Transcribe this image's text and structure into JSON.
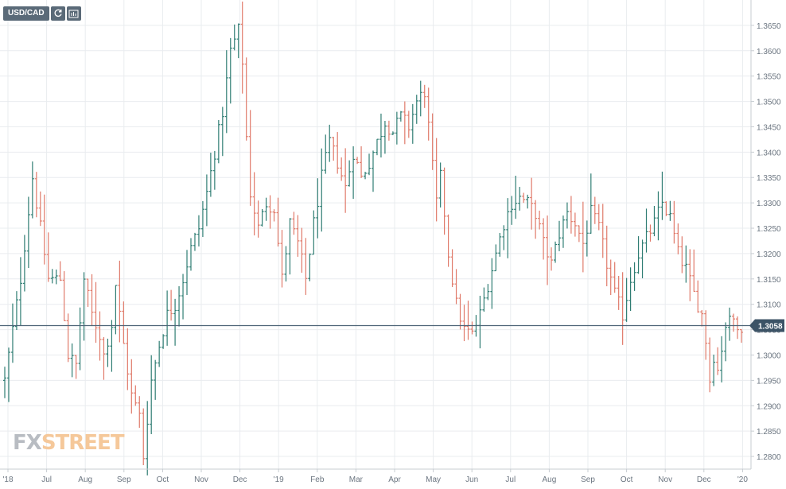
{
  "toolbar": {
    "symbol": "USD/CAD",
    "buttons": [
      {
        "name": "refresh-icon"
      },
      {
        "name": "chart-settings-icon"
      }
    ]
  },
  "logo": {
    "text_part1": "FX",
    "text_part2": "STREET"
  },
  "colors": {
    "up": "#2f7d73",
    "down": "#e07a6a",
    "current_line": "#4d6477",
    "price_badge": "#3c5366",
    "grid": "#e9ecef"
  },
  "chart_data": {
    "type": "ohlc",
    "title": "USD/CAD",
    "current_price": 1.3058,
    "current_price_label": "1.3058",
    "ylim": [
      1.2775,
      1.37
    ],
    "y_ticks": [
      "1.2800",
      "1.2850",
      "1.2900",
      "1.2950",
      "1.3000",
      "1.3050",
      "1.3100",
      "1.3150",
      "1.3200",
      "1.3250",
      "1.3300",
      "1.3350",
      "1.3400",
      "1.3450",
      "1.3500",
      "1.3550",
      "1.3600",
      "1.3650"
    ],
    "x_ticks": [
      "'18",
      "Jul",
      "Aug",
      "Sep",
      "Oct",
      "Nov",
      "Dec",
      "'19",
      "Feb",
      "Mar",
      "Apr",
      "May",
      "Jun",
      "Jul",
      "Aug",
      "Sep",
      "Oct",
      "Nov",
      "Dec",
      "'20"
    ],
    "grid": true,
    "price_path": [
      [
        0,
        1.295
      ],
      [
        4,
        1.315
      ],
      [
        7,
        1.335
      ],
      [
        9,
        1.325
      ],
      [
        11,
        1.315
      ],
      [
        14,
        1.315
      ],
      [
        16,
        1.3
      ],
      [
        18,
        1.298
      ],
      [
        20,
        1.315
      ],
      [
        22,
        1.308
      ],
      [
        24,
        1.304
      ],
      [
        25,
        1.3
      ],
      [
        27,
        1.306
      ],
      [
        28,
        1.314
      ],
      [
        30,
        1.302
      ],
      [
        32,
        1.292
      ],
      [
        34,
        1.288
      ],
      [
        35,
        1.28
      ],
      [
        37,
        1.295
      ],
      [
        39,
        1.302
      ],
      [
        41,
        1.308
      ],
      [
        43,
        1.31
      ],
      [
        45,
        1.315
      ],
      [
        47,
        1.321
      ],
      [
        49,
        1.325
      ],
      [
        51,
        1.332
      ],
      [
        53,
        1.34
      ],
      [
        55,
        1.348
      ],
      [
        57,
        1.36
      ],
      [
        59,
        1.364
      ],
      [
        60,
        1.358
      ],
      [
        61,
        1.343
      ],
      [
        62,
        1.332
      ],
      [
        64,
        1.325
      ],
      [
        66,
        1.33
      ],
      [
        68,
        1.329
      ],
      [
        70,
        1.315
      ],
      [
        72,
        1.326
      ],
      [
        74,
        1.322
      ],
      [
        76,
        1.315
      ],
      [
        78,
        1.326
      ],
      [
        80,
        1.335
      ],
      [
        82,
        1.342
      ],
      [
        84,
        1.338
      ],
      [
        86,
        1.333
      ],
      [
        88,
        1.34
      ],
      [
        90,
        1.335
      ],
      [
        92,
        1.338
      ],
      [
        94,
        1.342
      ],
      [
        96,
        1.346
      ],
      [
        98,
        1.344
      ],
      [
        100,
        1.347
      ],
      [
        102,
        1.345
      ],
      [
        104,
        1.35
      ],
      [
        106,
        1.352
      ],
      [
        107,
        1.345
      ],
      [
        108,
        1.337
      ],
      [
        109,
        1.33
      ],
      [
        110,
        1.335
      ],
      [
        111,
        1.328
      ],
      [
        112,
        1.32
      ],
      [
        113,
        1.315
      ],
      [
        114,
        1.31
      ],
      [
        116,
        1.305
      ],
      [
        118,
        1.304
      ],
      [
        120,
        1.308
      ],
      [
        122,
        1.314
      ],
      [
        124,
        1.32
      ],
      [
        126,
        1.326
      ],
      [
        128,
        1.33
      ],
      [
        130,
        1.331
      ],
      [
        132,
        1.33
      ],
      [
        134,
        1.328
      ],
      [
        136,
        1.322
      ],
      [
        138,
        1.318
      ],
      [
        140,
        1.324
      ],
      [
        142,
        1.328
      ],
      [
        144,
        1.326
      ],
      [
        146,
        1.322
      ],
      [
        148,
        1.328
      ],
      [
        150,
        1.325
      ],
      [
        152,
        1.318
      ],
      [
        154,
        1.312
      ],
      [
        156,
        1.308
      ],
      [
        158,
        1.315
      ],
      [
        160,
        1.32
      ],
      [
        162,
        1.323
      ],
      [
        164,
        1.326
      ],
      [
        166,
        1.33
      ],
      [
        168,
        1.327
      ],
      [
        170,
        1.32
      ],
      [
        172,
        1.317
      ],
      [
        174,
        1.312
      ],
      [
        176,
        1.308
      ],
      [
        177,
        1.303
      ],
      [
        178,
        1.295
      ],
      [
        179,
        1.3
      ],
      [
        180,
        1.297
      ],
      [
        182,
        1.306
      ],
      [
        184,
        1.307
      ],
      [
        186,
        1.3058
      ]
    ]
  }
}
